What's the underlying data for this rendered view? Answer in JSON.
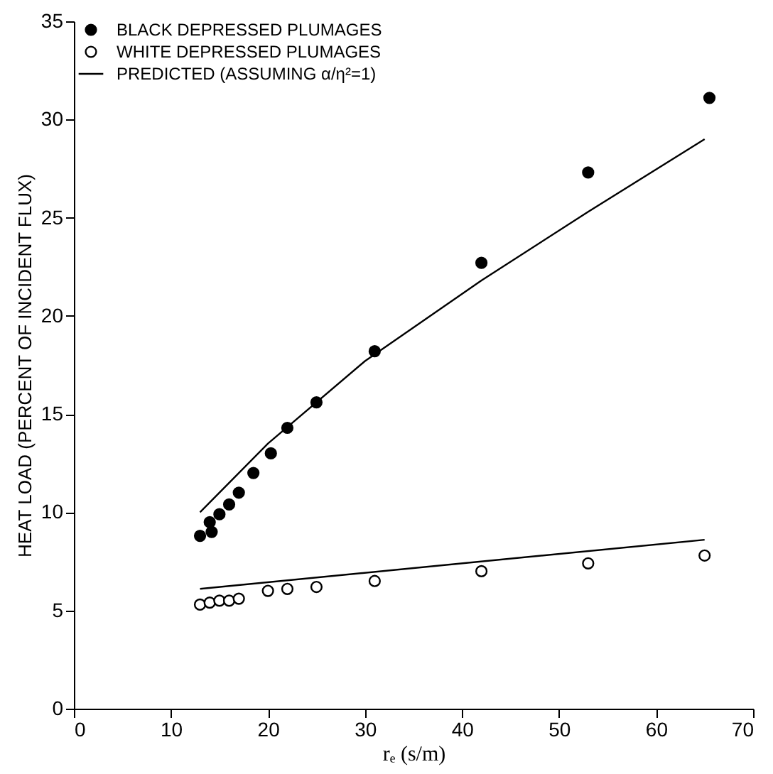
{
  "chart_data": {
    "type": "scatter",
    "xlabel": "rₑ (s/m)",
    "ylabel": "HEAT LOAD (PERCENT OF INCIDENT FLUX)",
    "xlim": [
      0,
      70
    ],
    "xticks": [
      0,
      10,
      20,
      30,
      40,
      50,
      60,
      70
    ],
    "ylim": [
      0,
      35
    ],
    "yticks": [
      0,
      5,
      10,
      15,
      20,
      25,
      30,
      35
    ],
    "legend": "top left",
    "marker": "circle",
    "series": [
      {
        "name": "BLACK DEPRESSED PLUMAGES",
        "color": "#000000",
        "x": [
          13,
          14,
          14.2,
          15,
          16,
          17,
          18.5,
          20.3,
          22,
          25,
          31,
          42,
          53,
          65.5
        ],
        "values": [
          8.8,
          9.5,
          9.0,
          9.9,
          10.4,
          11.0,
          12.0,
          13.0,
          14.3,
          15.6,
          18.2,
          22.7,
          27.3,
          31.1
        ]
      },
      {
        "name": "WHITE DEPRESSED PLUMAGES",
        "color": "#ffffff",
        "x": [
          13,
          14,
          15,
          16,
          17,
          20,
          22,
          25,
          31,
          42,
          53,
          65
        ],
        "values": [
          5.3,
          5.4,
          5.5,
          5.5,
          5.6,
          6.0,
          6.1,
          6.2,
          6.5,
          7.0,
          7.4,
          7.8
        ]
      },
      {
        "name": "PREDICTED (ASSUMING α/η²=1)",
        "type": "line",
        "color": "#000000",
        "marker": "none",
        "x": [
          13,
          20,
          30,
          42,
          53,
          65
        ],
        "values": [
          10.0,
          13.5,
          17.7,
          21.8,
          25.3,
          29.0
        ]
      },
      {
        "type": "line",
        "color": "#000000",
        "marker": "none",
        "x": [
          13,
          65
        ],
        "values": [
          6.1,
          8.6
        ]
      }
    ]
  }
}
